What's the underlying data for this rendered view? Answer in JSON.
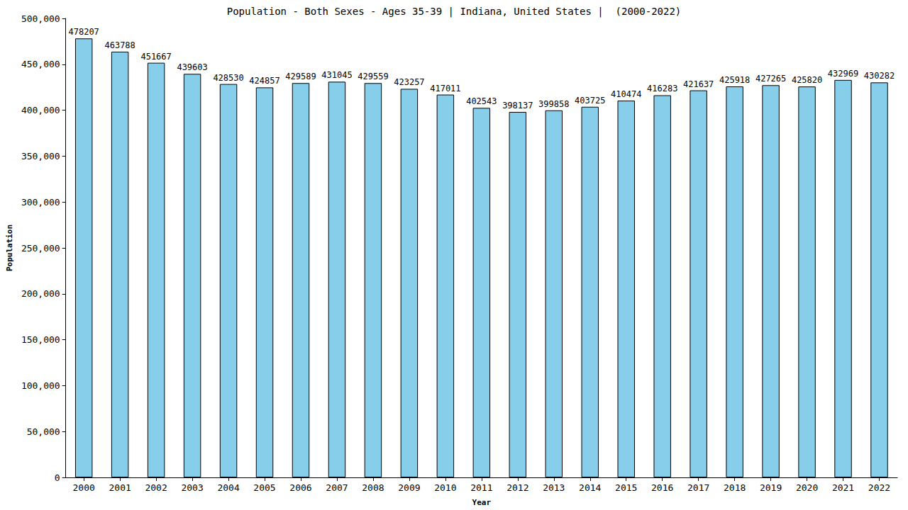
{
  "chart_data": {
    "type": "bar",
    "title": "Population - Both Sexes - Ages 35-39 | Indiana, United States |  (2000-2022)",
    "x_label": "Year",
    "y_label": "Population",
    "categories": [
      "2000",
      "2001",
      "2002",
      "2003",
      "2004",
      "2005",
      "2006",
      "2007",
      "2008",
      "2009",
      "2010",
      "2011",
      "2012",
      "2013",
      "2014",
      "2015",
      "2016",
      "2017",
      "2018",
      "2019",
      "2020",
      "2021",
      "2022"
    ],
    "values": [
      478207,
      463788,
      451667,
      439603,
      428530,
      424857,
      429589,
      431045,
      429559,
      423257,
      417011,
      402543,
      398137,
      399858,
      403725,
      410474,
      416283,
      421637,
      425918,
      427265,
      425820,
      432969,
      430282
    ],
    "color": "#87ceeb",
    "ylim": [
      0,
      500000
    ],
    "yticks": [
      0,
      50000,
      100000,
      150000,
      200000,
      250000,
      300000,
      350000,
      400000,
      450000,
      500000
    ],
    "grid": false,
    "data_labels": true
  }
}
